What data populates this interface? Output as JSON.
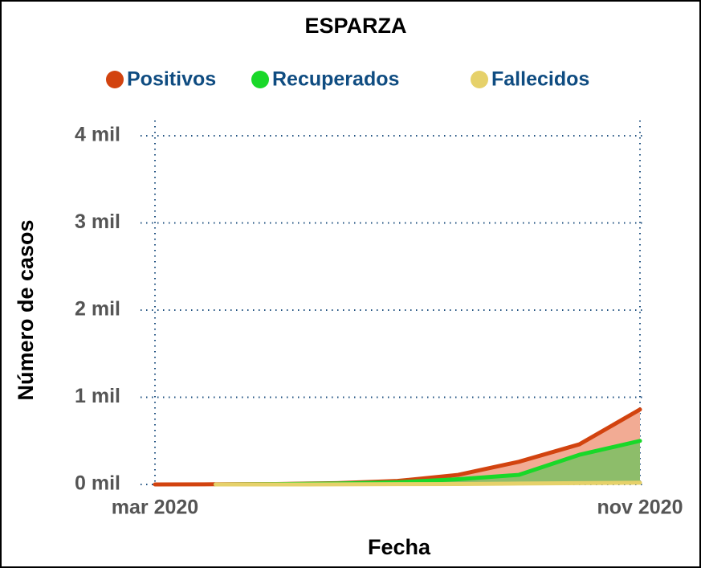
{
  "chart_data": {
    "type": "area-line",
    "title": "ESPARZA",
    "x_label": "Fecha",
    "y_label": "Número de casos",
    "x": [
      "2020-03",
      "2020-04",
      "2020-05",
      "2020-06",
      "2020-07",
      "2020-08",
      "2020-09",
      "2020-10",
      "2020-11"
    ],
    "series": [
      {
        "name": "Positivos",
        "color": "#d2430f",
        "fill": "#f2ab94",
        "values": [
          0,
          2,
          5,
          15,
          40,
          110,
          260,
          460,
          860
        ]
      },
      {
        "name": "Recuperados",
        "color": "#19d829",
        "fill": "#8dbd6a",
        "values": [
          null,
          0,
          3,
          10,
          25,
          60,
          110,
          340,
          500
        ]
      },
      {
        "name": "Fallecidos",
        "color": "#e6d16a",
        "values": [
          null,
          0,
          0,
          1,
          3,
          5,
          10,
          15,
          20
        ]
      }
    ],
    "xlim": [
      "2020-03",
      "2020-11"
    ],
    "xticks": [
      {
        "value": "2020-03",
        "label": "mar 2020"
      },
      {
        "value": "2020-11",
        "label": "nov 2020"
      }
    ],
    "ylim": [
      0,
      4000
    ],
    "yticks": [
      {
        "value": 0,
        "label": "0 mil"
      },
      {
        "value": 1000,
        "label": "1 mil"
      },
      {
        "value": 2000,
        "label": "2 mil"
      },
      {
        "value": 3000,
        "label": "3 mil"
      },
      {
        "value": 4000,
        "label": "4 mil"
      }
    ],
    "grid": true,
    "legend": "top"
  }
}
